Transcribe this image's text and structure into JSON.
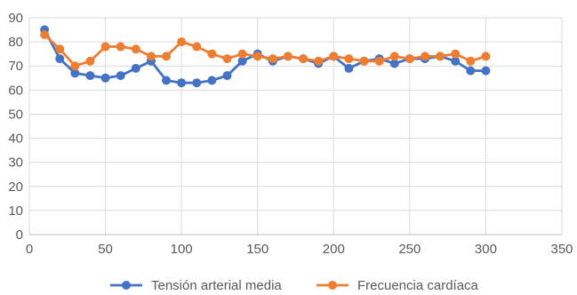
{
  "chart_data": {
    "type": "scatter",
    "title": "",
    "xlabel": "",
    "ylabel": "",
    "xlim": [
      0,
      350
    ],
    "ylim": [
      0,
      90
    ],
    "x_ticks": [
      "0",
      "50",
      "100",
      "150",
      "200",
      "250",
      "300",
      "350"
    ],
    "y_ticks": [
      "0",
      "10",
      "20",
      "30",
      "40",
      "50",
      "60",
      "70",
      "80",
      "90"
    ],
    "grid": true,
    "legend_position": "bottom",
    "series": [
      {
        "name": "Tensión arterial media",
        "color": "#4472C4",
        "x": [
          10,
          20,
          30,
          40,
          50,
          60,
          70,
          80,
          90,
          100,
          110,
          120,
          130,
          140,
          150,
          160,
          170,
          180,
          190,
          200,
          210,
          220,
          230,
          240,
          250,
          260,
          270,
          280,
          290,
          300
        ],
        "y": [
          85,
          73,
          67,
          66,
          65,
          66,
          69,
          72,
          64,
          63,
          63,
          64,
          66,
          72,
          75,
          72,
          74,
          73,
          71,
          74,
          69,
          72,
          73,
          71,
          73,
          73,
          74,
          72,
          68,
          68
        ]
      },
      {
        "name": "Frecuencia cardíaca",
        "color": "#ED7D31",
        "x": [
          10,
          20,
          30,
          40,
          50,
          60,
          70,
          80,
          90,
          100,
          110,
          120,
          130,
          140,
          150,
          160,
          170,
          180,
          190,
          200,
          210,
          220,
          230,
          240,
          250,
          260,
          270,
          280,
          290,
          300
        ],
        "y": [
          83,
          77,
          70,
          72,
          78,
          78,
          77,
          74,
          74,
          80,
          78,
          75,
          73,
          75,
          74,
          73,
          74,
          73,
          72,
          74,
          73,
          72,
          72,
          74,
          73,
          74,
          74,
          75,
          72,
          74
        ]
      }
    ]
  }
}
